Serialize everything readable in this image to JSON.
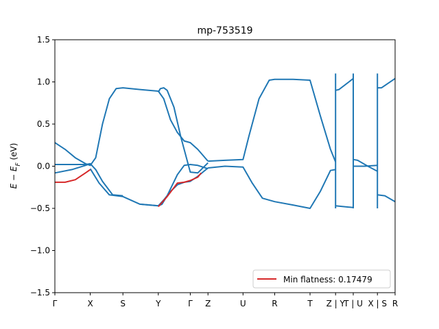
{
  "chart_data": {
    "type": "line",
    "title": "mp-753519",
    "xlabel": "",
    "ylabel": "E − E_F (eV)",
    "ylim": [
      -1.5,
      1.5
    ],
    "yticks": [
      -1.5,
      -1.0,
      -0.5,
      0.0,
      0.5,
      1.0,
      1.5
    ],
    "ytick_labels": [
      "−1.5",
      "−1.0",
      "−0.5",
      "0.0",
      "0.5",
      "1.0",
      "1.5"
    ],
    "xlim": [
      0,
      10
    ],
    "kpoints": [
      {
        "label": "Γ",
        "x": 0
      },
      {
        "label": "X",
        "x": 1.04
      },
      {
        "label": "S",
        "x": 2.0
      },
      {
        "label": "Y",
        "x": 3.04
      },
      {
        "label": "Γ",
        "x": 3.98
      },
      {
        "label": "Z",
        "x": 4.5
      },
      {
        "label": "U",
        "x": 5.53
      },
      {
        "label": "R",
        "x": 6.46
      },
      {
        "label": "T",
        "x": 7.5
      },
      {
        "label": "Z | Y",
        "x": 8.25
      },
      {
        "label": "T | U",
        "x": 8.77
      },
      {
        "label": "X | S",
        "x": 9.48
      },
      {
        "label": "R",
        "x": 10
      }
    ],
    "extra_ticks": [
      8.25,
      8.77,
      9.48
    ],
    "legend": {
      "label": "Min flatness: 0.17479",
      "color": "#d62728",
      "position": "lower-right"
    },
    "band_color": "#1f77b4",
    "highlight_color": "#d62728",
    "series": [
      {
        "color": "#1f77b4",
        "segments": [
          [
            [
              0,
              0.28
            ],
            [
              0.3,
              0.2
            ],
            [
              0.6,
              0.1
            ],
            [
              0.9,
              0.03
            ],
            [
              1.04,
              0.01
            ],
            [
              1.2,
              0.1
            ],
            [
              1.4,
              0.5
            ],
            [
              1.6,
              0.8
            ],
            [
              1.8,
              0.92
            ],
            [
              2.0,
              0.93
            ],
            [
              2.5,
              0.91
            ],
            [
              3.04,
              0.89
            ],
            [
              3.2,
              0.8
            ],
            [
              3.4,
              0.55
            ],
            [
              3.6,
              0.4
            ],
            [
              3.8,
              0.3
            ],
            [
              3.98,
              0.28
            ],
            [
              4.2,
              0.2
            ],
            [
              4.5,
              0.06
            ]
          ],
          [
            [
              4.5,
              0.06
            ],
            [
              5.0,
              0.07
            ],
            [
              5.53,
              0.08
            ],
            [
              5.7,
              0.35
            ],
            [
              6.0,
              0.8
            ],
            [
              6.3,
              1.02
            ],
            [
              6.46,
              1.03
            ],
            [
              7.0,
              1.03
            ],
            [
              7.5,
              1.02
            ],
            [
              7.8,
              0.6
            ],
            [
              8.1,
              0.2
            ],
            [
              8.25,
              0.05
            ]
          ],
          [
            [
              8.25,
              0.9
            ],
            [
              8.35,
              0.91
            ],
            [
              8.77,
              1.04
            ]
          ],
          [
            [
              8.77,
              0.08
            ],
            [
              8.9,
              0.07
            ],
            [
              9.2,
              0.0
            ],
            [
              9.48,
              -0.06
            ]
          ],
          [
            [
              9.48,
              0.93
            ],
            [
              9.6,
              0.93
            ],
            [
              10,
              1.04
            ]
          ]
        ]
      },
      {
        "color": "#1f77b4",
        "segments": [
          [
            [
              0,
              0.02
            ],
            [
              0.5,
              0.02
            ],
            [
              0.9,
              0.02
            ],
            [
              1.04,
              0.03
            ]
          ],
          [
            [
              1.04,
              -0.03
            ],
            [
              1.3,
              -0.2
            ],
            [
              1.6,
              -0.34
            ],
            [
              2.0,
              -0.36
            ],
            [
              2.5,
              -0.45
            ],
            [
              3.04,
              -0.47
            ],
            [
              3.2,
              -0.4
            ],
            [
              3.4,
              -0.3
            ],
            [
              3.6,
              -0.22
            ],
            [
              3.8,
              -0.19
            ],
            [
              3.98,
              -0.18
            ],
            [
              4.2,
              -0.12
            ],
            [
              4.5,
              -0.02
            ]
          ],
          [
            [
              4.5,
              -0.02
            ],
            [
              5.0,
              0.0
            ],
            [
              5.53,
              -0.01
            ],
            [
              5.8,
              -0.2
            ],
            [
              6.1,
              -0.38
            ],
            [
              6.46,
              -0.42
            ],
            [
              7.0,
              -0.46
            ],
            [
              7.5,
              -0.5
            ],
            [
              7.8,
              -0.3
            ],
            [
              8.1,
              -0.05
            ],
            [
              8.25,
              -0.04
            ]
          ],
          [
            [
              8.25,
              -0.47
            ],
            [
              8.5,
              -0.48
            ],
            [
              8.77,
              -0.49
            ]
          ],
          [
            [
              8.77,
              0.0
            ],
            [
              9.1,
              0.0
            ],
            [
              9.48,
              0.01
            ]
          ],
          [
            [
              9.48,
              -0.34
            ],
            [
              9.7,
              -0.35
            ],
            [
              10,
              -0.42
            ]
          ]
        ]
      },
      {
        "color": "#1f77b4",
        "segments": [
          [
            [
              0,
              -0.08
            ],
            [
              0.5,
              -0.04
            ],
            [
              0.9,
              0.01
            ],
            [
              1.04,
              0.03
            ],
            [
              1.2,
              -0.04
            ],
            [
              1.4,
              -0.18
            ],
            [
              1.7,
              -0.34
            ],
            [
              2.0,
              -0.35
            ]
          ],
          [
            [
              2.5,
              -0.45
            ],
            [
              3.04,
              -0.47
            ],
            [
              3.15,
              -0.45
            ],
            [
              3.3,
              -0.35
            ],
            [
              3.6,
              -0.1
            ],
            [
              3.8,
              0.01
            ],
            [
              3.98,
              0.02
            ],
            [
              4.2,
              0.01
            ],
            [
              4.5,
              -0.03
            ]
          ],
          [
            [
              3.04,
              0.88
            ],
            [
              3.1,
              0.92
            ],
            [
              3.2,
              0.93
            ],
            [
              3.3,
              0.9
            ],
            [
              3.5,
              0.7
            ],
            [
              3.7,
              0.35
            ],
            [
              3.9,
              0.05
            ],
            [
              3.98,
              -0.07
            ],
            [
              4.2,
              -0.08
            ],
            [
              4.5,
              0.04
            ]
          ]
        ]
      },
      {
        "color": "#d62728",
        "segments": [
          [
            [
              0,
              -0.19
            ],
            [
              0.3,
              -0.19
            ],
            [
              0.6,
              -0.16
            ],
            [
              0.9,
              -0.08
            ],
            [
              1.04,
              -0.04
            ]
          ],
          [
            [
              3.04,
              -0.48
            ],
            [
              3.3,
              -0.36
            ],
            [
              3.6,
              -0.2
            ],
            [
              3.8,
              -0.19
            ],
            [
              3.98,
              -0.17
            ],
            [
              4.2,
              -0.13
            ],
            [
              4.3,
              -0.08
            ]
          ]
        ]
      }
    ],
    "grid": false
  }
}
